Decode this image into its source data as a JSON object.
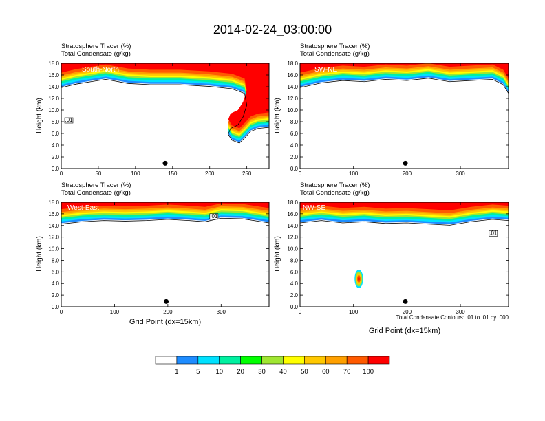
{
  "figure": {
    "title": "2014-02-24_03:00:00",
    "xlabel": "Grid Point (dx=15km)",
    "ylabel": "Height (km)",
    "contour_note": "Total Condensate Contours: .01 to .01 by .000"
  },
  "colors": {
    "levels": [
      "#ffffff",
      "#1e8cff",
      "#00e1ff",
      "#00f0a0",
      "#00ff00",
      "#a0e632",
      "#ffff00",
      "#ffc800",
      "#ffa000",
      "#ff5a00",
      "#ff0000"
    ],
    "contour": "#000000",
    "marker": "#000000"
  },
  "colorbar": {
    "labels": [
      "1",
      "5",
      "10",
      "20",
      "30",
      "40",
      "50",
      "60",
      "70",
      "100"
    ]
  },
  "chart_data": [
    {
      "type": "heatmap",
      "name": "South-North",
      "subtitle1": "Stratosphere Tracer   (%)",
      "subtitle2": "Total Condensate   (g/kg)",
      "xlim": [
        0,
        280
      ],
      "xticks": [
        0,
        50,
        100,
        150,
        200,
        250
      ],
      "ylim": [
        0,
        18
      ],
      "yticks": [
        "0.0",
        "2.0",
        "4.0",
        "6.0",
        "8.0",
        "10.0",
        "12.0",
        "14.0",
        "16.0",
        "18.0"
      ],
      "marker_x": 140,
      "contour_label": ".01",
      "tropopause": [
        [
          0,
          14.0
        ],
        [
          20,
          14.6
        ],
        [
          40,
          15.0
        ],
        [
          60,
          15.4
        ],
        [
          90,
          14.7
        ],
        [
          120,
          14.5
        ],
        [
          160,
          14.5
        ],
        [
          200,
          14.2
        ],
        [
          230,
          13.8
        ],
        [
          247,
          13.0
        ],
        [
          250,
          11.0
        ],
        [
          245,
          9.0
        ],
        [
          238,
          7.6
        ],
        [
          228,
          7.0
        ],
        [
          225,
          6.0
        ],
        [
          230,
          5.0
        ],
        [
          240,
          4.5
        ],
        [
          248,
          5.5
        ],
        [
          255,
          6.5
        ],
        [
          265,
          7.0
        ],
        [
          280,
          7.2
        ]
      ],
      "cloud_blobs": []
    },
    {
      "type": "heatmap",
      "name": "SW-NE",
      "subtitle1": "Stratosphere Tracer   (%)",
      "subtitle2": "Total Condensate   (g/kg)",
      "xlim": [
        0,
        390
      ],
      "xticks": [
        0,
        100,
        200,
        300
      ],
      "ylim": [
        0,
        18
      ],
      "yticks": [
        "0.0",
        "2.0",
        "4.0",
        "6.0",
        "8.0",
        "10.0",
        "12.0",
        "14.0",
        "16.0",
        "18.0"
      ],
      "marker_x": 197,
      "contour_label": "",
      "tropopause": [
        [
          0,
          14.0
        ],
        [
          40,
          14.8
        ],
        [
          80,
          15.2
        ],
        [
          120,
          15.0
        ],
        [
          160,
          15.4
        ],
        [
          200,
          15.2
        ],
        [
          240,
          15.6
        ],
        [
          280,
          15.0
        ],
        [
          320,
          15.2
        ],
        [
          360,
          15.4
        ],
        [
          380,
          14.5
        ],
        [
          390,
          13.0
        ]
      ],
      "cloud_blobs": []
    },
    {
      "type": "heatmap",
      "name": "West-East",
      "subtitle1": "Stratosphere Tracer   (%)",
      "subtitle2": "Total Condensate   (g/kg)",
      "xlim": [
        0,
        390
      ],
      "xticks": [
        0,
        100,
        200,
        300
      ],
      "ylim": [
        0,
        18
      ],
      "yticks": [
        "0.0",
        "2.0",
        "4.0",
        "6.0",
        "8.0",
        "10.0",
        "12.0",
        "14.0",
        "16.0",
        "18.0"
      ],
      "marker_x": 197,
      "contour_label": ".01",
      "tropopause": [
        [
          0,
          14.4
        ],
        [
          40,
          14.8
        ],
        [
          80,
          15.0
        ],
        [
          120,
          14.9
        ],
        [
          160,
          15.0
        ],
        [
          200,
          15.2
        ],
        [
          240,
          15.0
        ],
        [
          270,
          14.8
        ],
        [
          300,
          15.4
        ],
        [
          340,
          15.3
        ],
        [
          390,
          14.6
        ]
      ],
      "cloud_blobs": []
    },
    {
      "type": "heatmap",
      "name": "NW-SE",
      "subtitle1": "Stratosphere Tracer   (%)",
      "subtitle2": "Total Condensate   (g/kg)",
      "xlim": [
        0,
        390
      ],
      "xticks": [
        0,
        100,
        200,
        300
      ],
      "ylim": [
        0,
        18
      ],
      "yticks": [
        "0.0",
        "2.0",
        "4.0",
        "6.0",
        "8.0",
        "10.0",
        "12.0",
        "14.0",
        "16.0",
        "18.0"
      ],
      "marker_x": 197,
      "contour_label": ".01",
      "tropopause": [
        [
          0,
          14.6
        ],
        [
          40,
          15.0
        ],
        [
          80,
          14.6
        ],
        [
          120,
          14.8
        ],
        [
          160,
          14.5
        ],
        [
          200,
          14.6
        ],
        [
          240,
          14.4
        ],
        [
          280,
          14.2
        ],
        [
          320,
          14.8
        ],
        [
          360,
          15.2
        ],
        [
          390,
          15.0
        ]
      ],
      "cloud_blobs": [
        {
          "x": 110,
          "y": 4.8,
          "rx": 8,
          "ry": 1.6
        }
      ]
    }
  ]
}
